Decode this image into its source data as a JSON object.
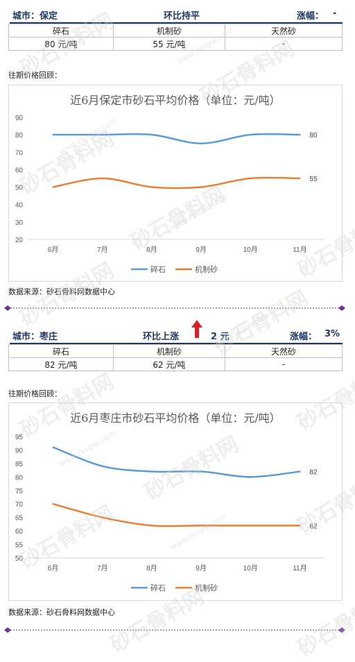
{
  "watermark": {
    "text": "砂石骨料网",
    "url": "www.cssglw.com"
  },
  "sections": [
    {
      "city": "城市：保定",
      "trend": "环比持平",
      "change_label": "涨幅：",
      "change_value": "-",
      "table_headers": [
        "碎石",
        "机制砂",
        "天然砂"
      ],
      "table_values": [
        "80 元/吨",
        "55 元/吨",
        "-"
      ],
      "review_label": "往期价格回顾：",
      "source": "数据来源：砂石骨料网数据中心",
      "chart_data": {
        "type": "line",
        "title": "近6月保定市砂石平均价格（单位：元/吨）",
        "categories": [
          "6月",
          "7月",
          "8月",
          "9月",
          "10月",
          "11月"
        ],
        "ylim": [
          20,
          90
        ],
        "yticks": [
          20,
          30,
          40,
          50,
          60,
          70,
          80,
          90
        ],
        "grid": false,
        "legend": "bottom",
        "series": [
          {
            "name": "碎石",
            "values": [
              80,
              80,
              80,
              75,
              80,
              80
            ],
            "color": "#5b9bd5"
          },
          {
            "name": "机制砂",
            "values": [
              50,
              55,
              50,
              50,
              55,
              55
            ],
            "color": "#ed7d31"
          }
        ],
        "end_labels": [
          "80",
          "55"
        ]
      }
    },
    {
      "city": "城市：枣庄",
      "trend": "环比上涨",
      "trend_amount": "2 元",
      "change_label": "涨幅：",
      "change_value": "3%",
      "table_headers": [
        "碎石",
        "机制砂",
        "天然砂"
      ],
      "table_values": [
        "82 元/吨",
        "62 元/吨",
        "-"
      ],
      "review_label": "往期价格回顾：",
      "source": "数据来源：砂石骨料网数据中心",
      "chart_data": {
        "type": "line",
        "title": "近6月枣庄市砂石平均价格（单位：元/吨）",
        "categories": [
          "6月",
          "7月",
          "8月",
          "9月",
          "10月",
          "11月"
        ],
        "ylim": [
          50,
          95
        ],
        "yticks": [
          50,
          55,
          60,
          65,
          70,
          75,
          80,
          85,
          90,
          95
        ],
        "grid": false,
        "legend": "bottom",
        "series": [
          {
            "name": "碎石",
            "values": [
              91,
              84,
              82,
              82,
              80,
              82
            ],
            "color": "#5b9bd5"
          },
          {
            "name": "机制砂",
            "values": [
              70,
              65,
              62,
              62,
              62,
              62
            ],
            "color": "#ed7d31"
          }
        ],
        "end_labels": [
          "82",
          "62"
        ]
      }
    }
  ],
  "colors": {
    "accent": "#1f3864",
    "up_arrow": "#e02020",
    "separator": "#7030a0"
  }
}
